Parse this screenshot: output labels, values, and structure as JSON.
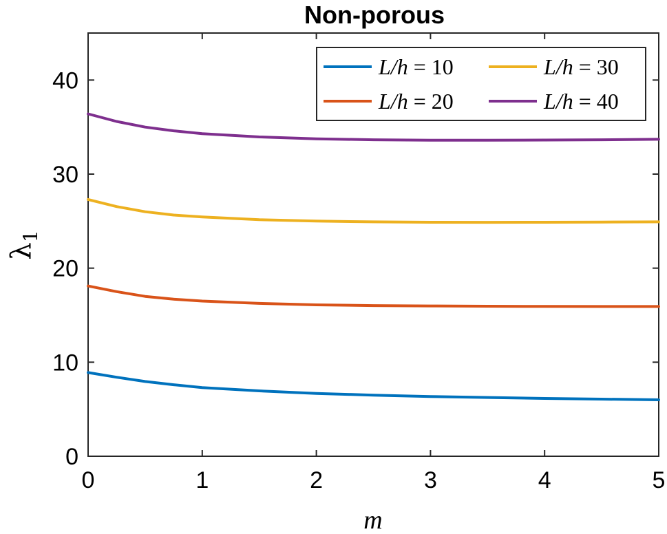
{
  "chart_data": {
    "type": "line",
    "title": "Non-porous",
    "xlabel": "m",
    "ylabel": "λ1",
    "xlim": [
      0,
      5
    ],
    "ylim": [
      0,
      45
    ],
    "xticks": [
      0,
      1,
      2,
      3,
      4,
      5
    ],
    "yticks": [
      0,
      10,
      20,
      30,
      40
    ],
    "grid": false,
    "legend_placement": "top-right",
    "series": [
      {
        "name": "L/h = 10",
        "color": "#0072BD",
        "x": [
          0,
          0.25,
          0.5,
          0.75,
          1,
          1.5,
          2,
          2.5,
          3,
          3.5,
          4,
          4.5,
          5
        ],
        "y": [
          8.9,
          8.4,
          7.95,
          7.6,
          7.3,
          6.95,
          6.68,
          6.5,
          6.35,
          6.25,
          6.15,
          6.07,
          6.0
        ]
      },
      {
        "name": "L/h = 20",
        "color": "#D95319",
        "x": [
          0,
          0.25,
          0.5,
          0.75,
          1,
          1.5,
          2,
          2.5,
          3,
          3.5,
          4,
          4.5,
          5
        ],
        "y": [
          18.1,
          17.5,
          17.0,
          16.7,
          16.5,
          16.25,
          16.1,
          16.02,
          15.98,
          15.95,
          15.93,
          15.92,
          15.92
        ]
      },
      {
        "name": "L/h = 30",
        "color": "#EDB120",
        "x": [
          0,
          0.25,
          0.5,
          0.75,
          1,
          1.5,
          2,
          2.5,
          3,
          3.5,
          4,
          4.5,
          5
        ],
        "y": [
          27.3,
          26.55,
          26.0,
          25.65,
          25.45,
          25.15,
          25.0,
          24.92,
          24.88,
          24.87,
          24.88,
          24.9,
          24.92
        ]
      },
      {
        "name": "L/h = 40",
        "color": "#7E2F8E",
        "x": [
          0,
          0.25,
          0.5,
          0.75,
          1,
          1.5,
          2,
          2.5,
          3,
          3.5,
          4,
          4.5,
          5
        ],
        "y": [
          36.4,
          35.6,
          35.0,
          34.6,
          34.3,
          33.95,
          33.75,
          33.65,
          33.6,
          33.6,
          33.62,
          33.65,
          33.7
        ]
      }
    ]
  }
}
